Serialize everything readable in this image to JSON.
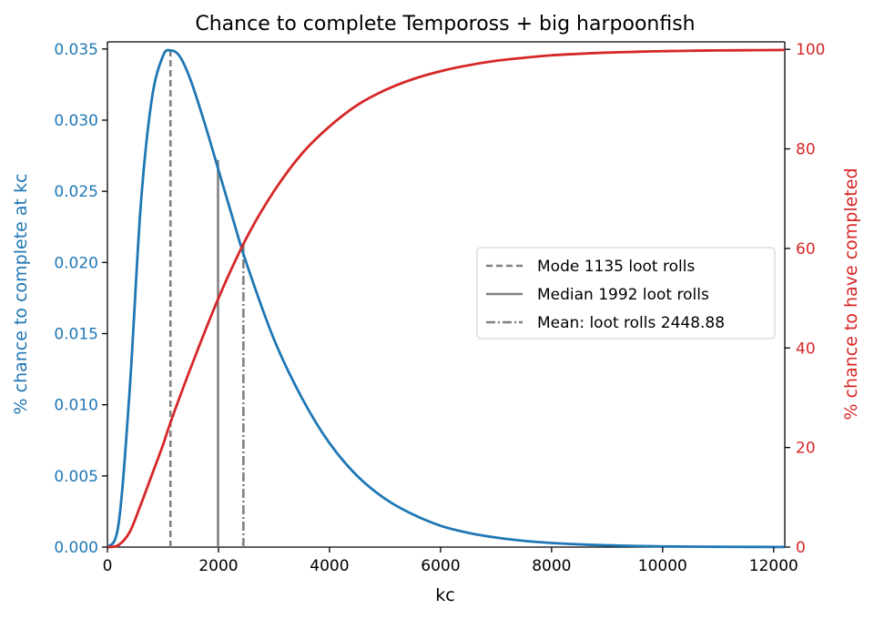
{
  "chart_data": {
    "type": "line",
    "title": "Chance to complete Tempoross + big harpoonfish",
    "xlabel": "kc",
    "ylabel_left": "% chance to complete at kc",
    "ylabel_right": "% chance to have completed",
    "xlim": [
      0,
      12200
    ],
    "ylim_left": [
      0,
      0.0355
    ],
    "ylim_right": [
      0,
      101.5
    ],
    "x_ticks": [
      0,
      2000,
      4000,
      6000,
      8000,
      10000,
      12000
    ],
    "x_tick_labels": [
      "0",
      "2000",
      "4000",
      "6000",
      "8000",
      "10000",
      "12000"
    ],
    "y_left_ticks": [
      0,
      0.005,
      0.01,
      0.015,
      0.02,
      0.025,
      0.03,
      0.035
    ],
    "y_left_tick_labels": [
      "0.000",
      "0.005",
      "0.010",
      "0.015",
      "0.020",
      "0.025",
      "0.030",
      "0.035"
    ],
    "y_right_ticks": [
      0,
      20,
      40,
      60,
      80,
      100
    ],
    "y_right_tick_labels": [
      "0",
      "20",
      "40",
      "60",
      "80",
      "100"
    ],
    "grid": false,
    "legend_position": "center-right",
    "colors": {
      "left_axis": "#1f77b4",
      "right_axis": "#d62728",
      "markers": "#808080"
    },
    "series": [
      {
        "axis": "left",
        "x": [
          0,
          200,
          400,
          600,
          800,
          1000,
          1135,
          1300,
          1500,
          1750,
          2000,
          2250,
          2500,
          3000,
          3500,
          4000,
          4500,
          5000,
          5500,
          6000,
          6500,
          7000,
          7500,
          8000,
          8500,
          9000,
          9500,
          10000,
          10500,
          11000,
          11500,
          12000,
          12200
        ],
        "values": [
          0,
          0.0016,
          0.011,
          0.024,
          0.0315,
          0.0345,
          0.0349,
          0.0345,
          0.0328,
          0.0298,
          0.0265,
          0.0232,
          0.02,
          0.0146,
          0.0105,
          0.0073,
          0.005,
          0.0034,
          0.0023,
          0.0015,
          0.001,
          0.00067,
          0.00044,
          0.00029,
          0.00019,
          0.000125,
          8e-05,
          5e-05,
          3.2e-05,
          2e-05,
          1.3e-05,
          8e-06,
          7e-06
        ]
      },
      {
        "axis": "right",
        "x": [
          0,
          200,
          400,
          600,
          800,
          1000,
          1135,
          1500,
          2000,
          2500,
          3000,
          3500,
          4000,
          4500,
          5000,
          5500,
          6000,
          6500,
          7000,
          7500,
          8000,
          8500,
          9000,
          9500,
          10000,
          10500,
          11000,
          11500,
          12000,
          12200
        ],
        "values": [
          0,
          0.4,
          3,
          8.5,
          14.5,
          20.5,
          25,
          36,
          50,
          62,
          71.5,
          79,
          84.5,
          88.8,
          91.8,
          94,
          95.6,
          96.8,
          97.7,
          98.3,
          98.8,
          99.1,
          99.35,
          99.5,
          99.63,
          99.72,
          99.78,
          99.82,
          99.86,
          99.87
        ]
      }
    ],
    "markers": [
      {
        "label": "Mode 1135 loot rolls",
        "x": 1135,
        "style": "dashed",
        "y_top": 0.0349
      },
      {
        "label": "Median 1992 loot rolls",
        "x": 1992,
        "style": "solid",
        "y_top": 0.0272
      },
      {
        "label": "Mean: loot rolls 2448.88",
        "x": 2449,
        "style": "dashdot",
        "y_top": 0.0215
      }
    ]
  }
}
